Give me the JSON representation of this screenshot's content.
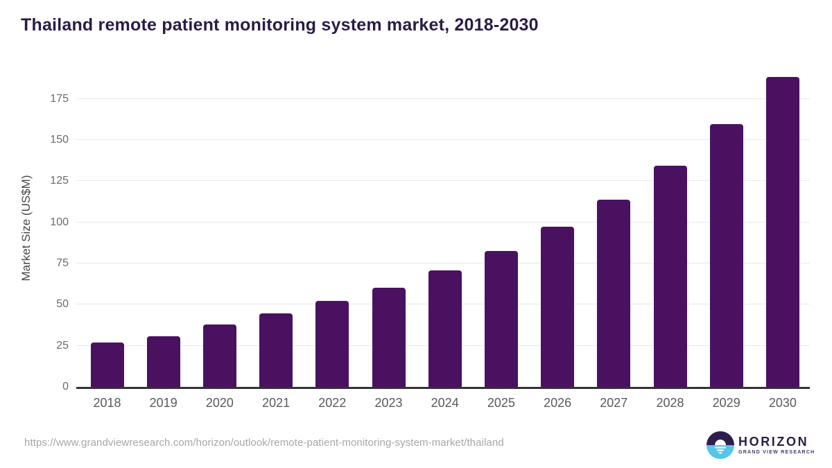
{
  "title": "Thailand remote patient monitoring system market, 2018-2030",
  "source_url": "https://www.grandviewresearch.com/horizon/outlook/remote-patient-monitoring-system-market/thailand",
  "logo": {
    "name": "HORIZON",
    "subtitle": "GRAND VIEW RESEARCH"
  },
  "colors": {
    "bar": "#4a1161",
    "title": "#2b1b45",
    "gridline": "#e8e8eb",
    "axis_line": "#333333",
    "y_tick_label": "#6a6b6e",
    "x_tick_label": "#58595b",
    "axis_title": "#454545",
    "source_url": "#a6a6a6",
    "logo_purple": "#2f1d4e",
    "logo_blue": "#57c4e9"
  },
  "chart_data": {
    "type": "bar",
    "title": "Thailand remote patient monitoring system market, 2018-2030",
    "categories": [
      "2018",
      "2019",
      "2020",
      "2021",
      "2022",
      "2023",
      "2024",
      "2025",
      "2026",
      "2027",
      "2028",
      "2029",
      "2030"
    ],
    "values": [
      26.9,
      30.6,
      38.1,
      44.8,
      52.1,
      60.3,
      70.8,
      82.8,
      97.3,
      113.9,
      134.5,
      159.7,
      188.2
    ],
    "xlabel": "",
    "ylabel": "Market Size (US$M)",
    "ylim": [
      0,
      193
    ],
    "yticks": [
      0,
      25,
      50,
      75,
      100,
      125,
      150,
      175
    ],
    "grid": "horizontal",
    "legend": "none",
    "bar_color": "#4a1161"
  }
}
